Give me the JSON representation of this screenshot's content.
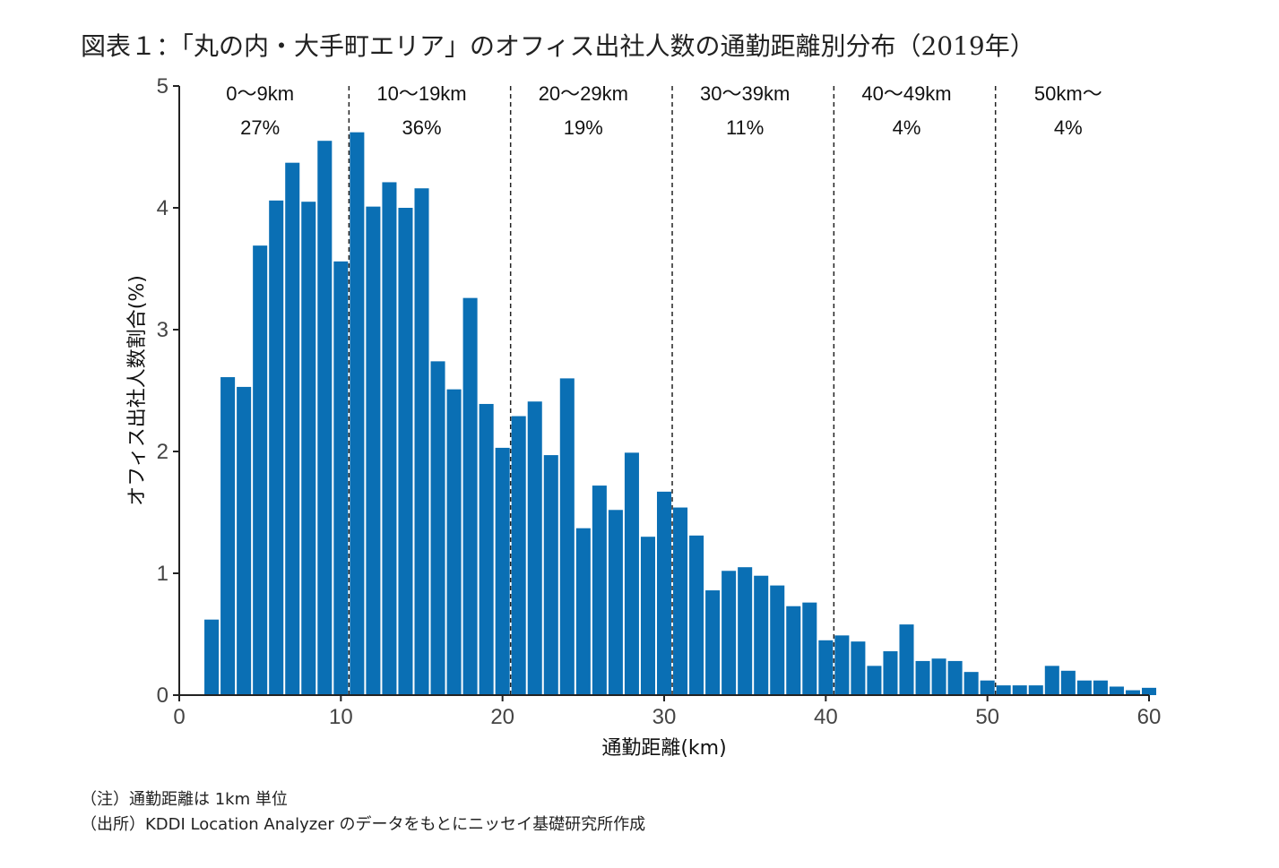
{
  "title": "図表１：「丸の内・大手町エリア」のオフィス出社人数の通勤距離別分布（2019年）",
  "notes": [
    "（注）通勤距離は 1km 単位",
    "（出所）KDDI Location Analyzer のデータをもとにニッセイ基礎研究所作成"
  ],
  "colors": {
    "bar": "#0a6fb4",
    "axis": "#222222"
  },
  "chart_data": {
    "type": "bar",
    "xlabel": "通勤距離(km)",
    "ylabel": "オフィス出社人数割合(%)",
    "xlim": [
      0,
      60
    ],
    "ylim": [
      0,
      5
    ],
    "x_ticks": [
      "0",
      "10",
      "20",
      "30",
      "40",
      "50",
      "60"
    ],
    "y_ticks": [
      "0",
      "1",
      "2",
      "3",
      "4",
      "5"
    ],
    "x": [
      2,
      3,
      4,
      5,
      6,
      7,
      8,
      9,
      10,
      11,
      12,
      13,
      14,
      15,
      16,
      17,
      18,
      19,
      20,
      21,
      22,
      23,
      24,
      25,
      26,
      27,
      28,
      29,
      30,
      31,
      32,
      33,
      34,
      35,
      36,
      37,
      38,
      39,
      40,
      41,
      42,
      43,
      44,
      45,
      46,
      47,
      48,
      49,
      50,
      51,
      52,
      53,
      54,
      55,
      56,
      57,
      58,
      59,
      60
    ],
    "values": [
      0.62,
      2.61,
      2.53,
      3.69,
      4.06,
      4.37,
      4.05,
      4.55,
      3.56,
      4.62,
      4.01,
      4.21,
      4.0,
      4.16,
      2.74,
      2.51,
      3.26,
      2.39,
      2.03,
      2.29,
      2.41,
      1.97,
      2.6,
      1.37,
      1.72,
      1.52,
      1.99,
      1.3,
      1.67,
      1.54,
      1.31,
      0.86,
      1.02,
      1.05,
      0.98,
      0.9,
      0.73,
      0.76,
      0.45,
      0.49,
      0.44,
      0.24,
      0.36,
      0.58,
      0.28,
      0.3,
      0.28,
      0.19,
      0.12,
      0.08,
      0.08,
      0.08,
      0.24,
      0.2,
      0.12,
      0.12,
      0.07,
      0.04,
      0.06
    ],
    "dividers": [
      10.5,
      20.5,
      30.5,
      40.5,
      50.5
    ],
    "ranges": [
      {
        "label": "0～9km",
        "share": "27%",
        "center": 5
      },
      {
        "label": "10～19km",
        "share": "36%",
        "center": 15
      },
      {
        "label": "20～29km",
        "share": "19%",
        "center": 25
      },
      {
        "label": "30～39km",
        "share": "11%",
        "center": 35
      },
      {
        "label": "40～49km",
        "share": "4%",
        "center": 45
      },
      {
        "label": "50km～",
        "share": "4%",
        "center": 55
      }
    ]
  }
}
